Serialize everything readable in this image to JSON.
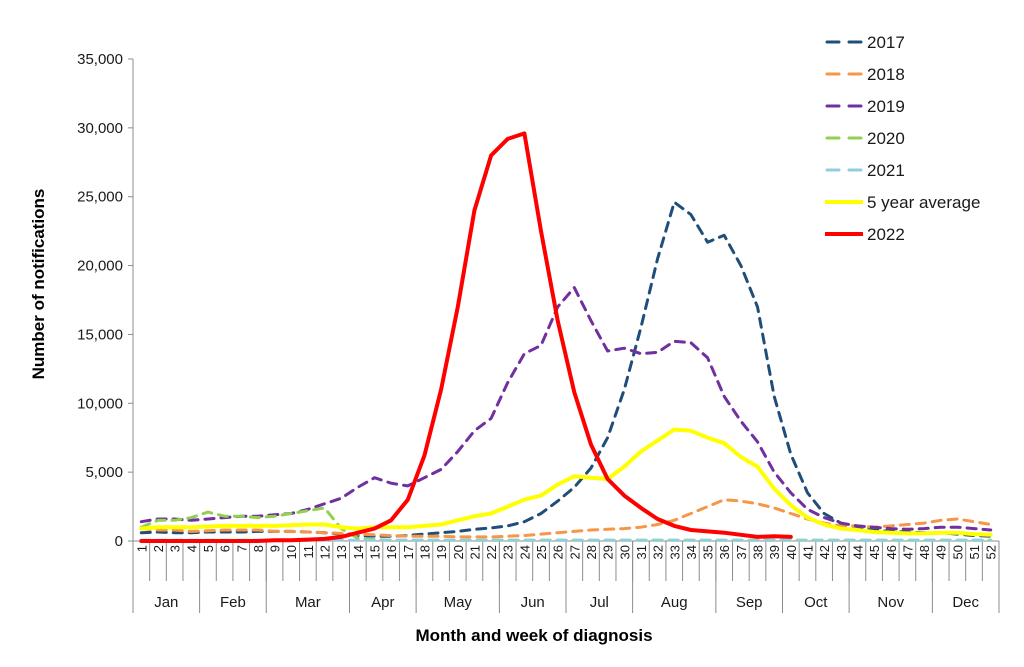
{
  "chart_data": {
    "type": "line",
    "title": "",
    "xlabel": "Month and week of diagnosis",
    "ylabel": "Number of notifications",
    "ylim": [
      0,
      35000
    ],
    "yticks": [
      0,
      5000,
      10000,
      15000,
      20000,
      25000,
      30000,
      35000
    ],
    "ytick_labels": [
      "0",
      "5,000",
      "10,000",
      "15,000",
      "20,000",
      "25,000",
      "30,000",
      "35,000"
    ],
    "grid": false,
    "legend_position": "top-right",
    "x": [
      1,
      2,
      3,
      4,
      5,
      6,
      7,
      8,
      9,
      10,
      11,
      12,
      13,
      14,
      15,
      16,
      17,
      18,
      19,
      20,
      21,
      22,
      23,
      24,
      25,
      26,
      27,
      28,
      29,
      30,
      31,
      32,
      33,
      34,
      35,
      36,
      37,
      38,
      39,
      40,
      41,
      42,
      43,
      44,
      45,
      46,
      47,
      48,
      49,
      50,
      51,
      52
    ],
    "x_tick_labels": [
      "1",
      "2",
      "3",
      "4",
      "5",
      "6",
      "7",
      "8",
      "9",
      "10",
      "11",
      "12",
      "13",
      "14",
      "15",
      "16",
      "17",
      "18",
      "19",
      "20",
      "21",
      "22",
      "23",
      "24",
      "25",
      "26",
      "27",
      "28",
      "29",
      "30",
      "31",
      "32",
      "33",
      "34",
      "35",
      "36",
      "37",
      "38",
      "39",
      "40",
      "41",
      "42",
      "43",
      "44",
      "45",
      "46",
      "47",
      "48",
      "49",
      "50",
      "51",
      "52"
    ],
    "months": [
      {
        "label": "Jan",
        "start_week": 1,
        "end_week": 4
      },
      {
        "label": "Feb",
        "start_week": 5,
        "end_week": 8
      },
      {
        "label": "Mar",
        "start_week": 9,
        "end_week": 13
      },
      {
        "label": "Apr",
        "start_week": 14,
        "end_week": 17
      },
      {
        "label": "May",
        "start_week": 18,
        "end_week": 22
      },
      {
        "label": "Jun",
        "start_week": 23,
        "end_week": 26
      },
      {
        "label": "Jul",
        "start_week": 27,
        "end_week": 30
      },
      {
        "label": "Aug",
        "start_week": 31,
        "end_week": 35
      },
      {
        "label": "Sep",
        "start_week": 36,
        "end_week": 39
      },
      {
        "label": "Oct",
        "start_week": 40,
        "end_week": 43
      },
      {
        "label": "Nov",
        "start_week": 44,
        "end_week": 48
      },
      {
        "label": "Dec",
        "start_week": 49,
        "end_week": 52
      }
    ],
    "series": [
      {
        "name": "2017",
        "color": "#1f4e79",
        "style": "dashed",
        "width": 3,
        "values": [
          600,
          650,
          600,
          600,
          650,
          650,
          650,
          700,
          700,
          700,
          650,
          600,
          500,
          400,
          350,
          350,
          400,
          500,
          600,
          700,
          850,
          950,
          1100,
          1400,
          2000,
          2900,
          3900,
          5300,
          7500,
          11000,
          15500,
          20500,
          24600,
          23700,
          21700,
          22200,
          20000,
          17000,
          10500,
          6300,
          3500,
          2000,
          1300,
          1000,
          800,
          700,
          650,
          600,
          600,
          500,
          400,
          350
        ]
      },
      {
        "name": "2018",
        "color": "#f79646",
        "style": "dashed",
        "width": 3,
        "values": [
          900,
          800,
          800,
          700,
          750,
          800,
          800,
          800,
          700,
          700,
          650,
          600,
          550,
          500,
          450,
          400,
          350,
          350,
          350,
          300,
          300,
          300,
          350,
          400,
          500,
          600,
          700,
          800,
          850,
          900,
          1000,
          1200,
          1500,
          2000,
          2500,
          3000,
          2900,
          2700,
          2400,
          2000,
          1600,
          1300,
          1100,
          1100,
          1000,
          1100,
          1200,
          1300,
          1500,
          1600,
          1400,
          1200
        ]
      },
      {
        "name": "2019",
        "color": "#7030a0",
        "style": "dashed",
        "width": 3,
        "values": [
          1400,
          1600,
          1600,
          1500,
          1600,
          1700,
          1800,
          1800,
          1900,
          2000,
          2300,
          2700,
          3100,
          3900,
          4600,
          4200,
          4000,
          4600,
          5200,
          6500,
          8000,
          8900,
          11500,
          13600,
          14200,
          17000,
          18400,
          16000,
          13800,
          14000,
          13600,
          13700,
          14500,
          14400,
          13300,
          10500,
          8700,
          7200,
          5000,
          3500,
          2300,
          1700,
          1300,
          1100,
          1000,
          900,
          850,
          900,
          1000,
          1000,
          900,
          800
        ]
      },
      {
        "name": "2020",
        "color": "#92d050",
        "style": "dashed",
        "width": 3,
        "values": [
          1000,
          1500,
          1500,
          1700,
          2100,
          1800,
          1800,
          1700,
          1800,
          2000,
          2200,
          2400,
          900,
          200,
          100,
          50,
          50,
          50,
          50,
          50,
          50,
          50,
          50,
          50,
          50,
          50,
          50,
          50,
          50,
          50,
          50,
          50,
          50,
          50,
          50,
          50,
          50,
          50,
          50,
          50,
          50,
          50,
          50,
          50,
          50,
          50,
          50,
          50,
          50,
          50,
          50,
          50
        ]
      },
      {
        "name": "2021",
        "color": "#92cddc",
        "style": "dashed",
        "width": 3,
        "values": [
          50,
          50,
          50,
          50,
          50,
          50,
          50,
          50,
          50,
          50,
          50,
          50,
          50,
          50,
          50,
          50,
          50,
          50,
          50,
          50,
          50,
          50,
          50,
          50,
          50,
          50,
          50,
          50,
          50,
          50,
          50,
          50,
          50,
          50,
          50,
          50,
          50,
          50,
          50,
          50,
          50,
          50,
          50,
          50,
          50,
          50,
          50,
          50,
          50,
          50,
          50,
          50
        ]
      },
      {
        "name": "5 year average",
        "color": "#ffff00",
        "style": "solid",
        "width": 4,
        "values": [
          900,
          1000,
          1000,
          1000,
          1050,
          1100,
          1100,
          1100,
          1100,
          1150,
          1200,
          1200,
          1000,
          900,
          1000,
          1000,
          1000,
          1100,
          1200,
          1500,
          1800,
          2000,
          2500,
          3000,
          3300,
          4100,
          4700,
          4600,
          4500,
          5400,
          6500,
          7300,
          8100,
          8000,
          7500,
          7100,
          6100,
          5400,
          3800,
          2600,
          1700,
          1200,
          900,
          800,
          650,
          600,
          550,
          550,
          600,
          600,
          500,
          450
        ]
      },
      {
        "name": "2022",
        "color": "#ff0000",
        "style": "solid",
        "width": 4,
        "values": [
          0,
          0,
          0,
          0,
          0,
          0,
          0,
          0,
          50,
          50,
          100,
          150,
          300,
          600,
          900,
          1500,
          3000,
          6200,
          11000,
          17000,
          24000,
          28000,
          29200,
          29600,
          22500,
          16000,
          10800,
          7000,
          4500,
          3300,
          2400,
          1600,
          1100,
          800,
          700,
          600,
          450,
          300,
          350,
          300,
          null,
          null,
          null,
          null,
          null,
          null,
          null,
          null,
          null,
          null,
          null,
          null
        ]
      }
    ]
  }
}
